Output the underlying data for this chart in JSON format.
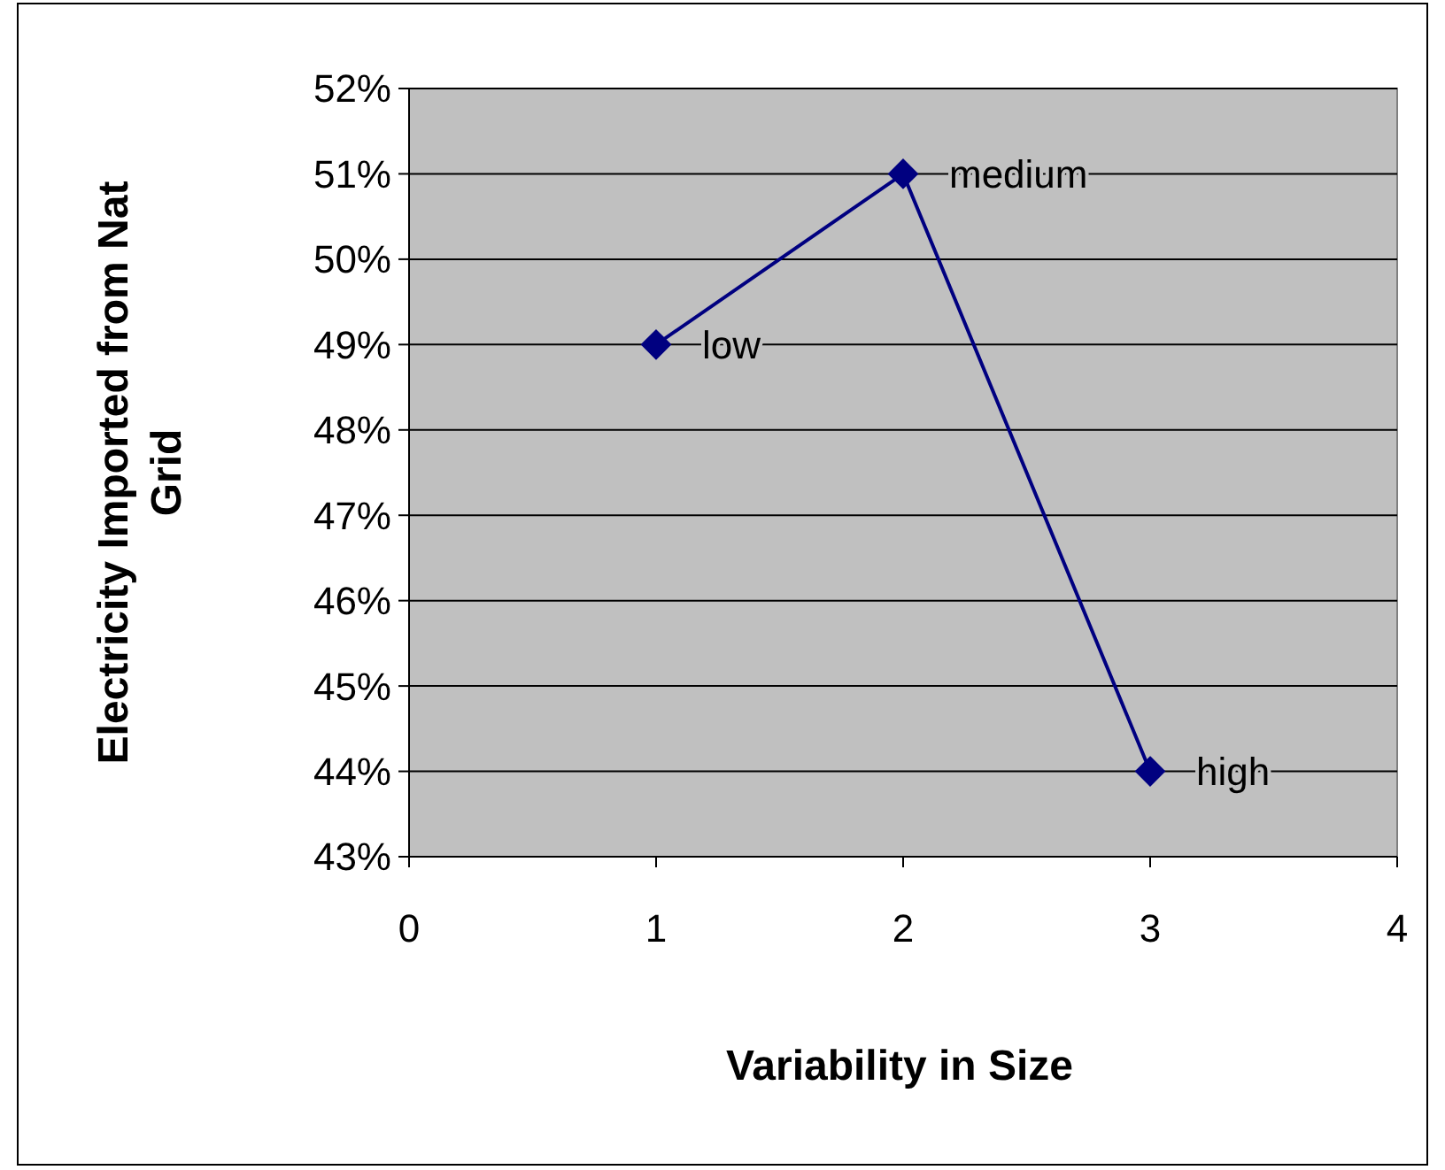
{
  "chart_data": {
    "type": "line",
    "xlabel": "Variability in Size",
    "ylabel": "Electricity Imported from Nat Grid",
    "x": [
      1,
      2,
      3
    ],
    "series": [
      {
        "color": "#000080",
        "values": [
          49,
          51,
          44
        ]
      }
    ],
    "marker": "diamond",
    "grid": "y",
    "xlim": [
      0,
      4
    ],
    "xticks": [
      0,
      1,
      2,
      3,
      4
    ],
    "ylim": [
      43,
      52
    ],
    "yticks": [
      {
        "value": 43,
        "label": "43%"
      },
      {
        "value": 44,
        "label": "44%"
      },
      {
        "value": 45,
        "label": "45%"
      },
      {
        "value": 46,
        "label": "46%"
      },
      {
        "value": 47,
        "label": "47%"
      },
      {
        "value": 48,
        "label": "48%"
      },
      {
        "value": 49,
        "label": "49%"
      },
      {
        "value": 50,
        "label": "50%"
      },
      {
        "value": 51,
        "label": "51%"
      },
      {
        "value": 52,
        "label": "52%"
      }
    ],
    "annotations": [
      {
        "text": "low",
        "x": 1,
        "y": 49
      },
      {
        "text": "medium",
        "x": 2,
        "y": 51
      },
      {
        "text": "high",
        "x": 3,
        "y": 44
      }
    ]
  }
}
